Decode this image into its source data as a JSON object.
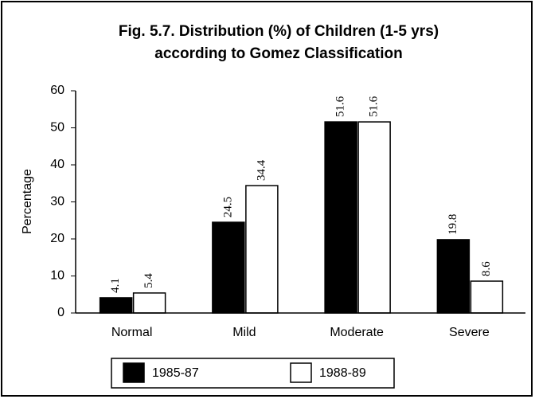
{
  "chart_data": {
    "type": "bar",
    "title": [
      "Fig. 5.7. Distribution (%) of Children (1-5 yrs)",
      "according to Gomez Classification"
    ],
    "y_label": "Percentage",
    "categories": [
      "Normal",
      "Mild",
      "Moderate",
      "Severe"
    ],
    "series": [
      {
        "name": "1985-87",
        "color": "#000000",
        "values": [
          4.1,
          24.5,
          51.6,
          19.8
        ]
      },
      {
        "name": "1988-89",
        "color": "#ffffff",
        "values": [
          5.4,
          34.4,
          51.6,
          8.6
        ]
      }
    ],
    "ylim": [
      0,
      60
    ],
    "yticks": [
      0,
      10,
      20,
      30,
      40,
      50,
      60
    ],
    "grid": false,
    "legend": "bottom"
  }
}
